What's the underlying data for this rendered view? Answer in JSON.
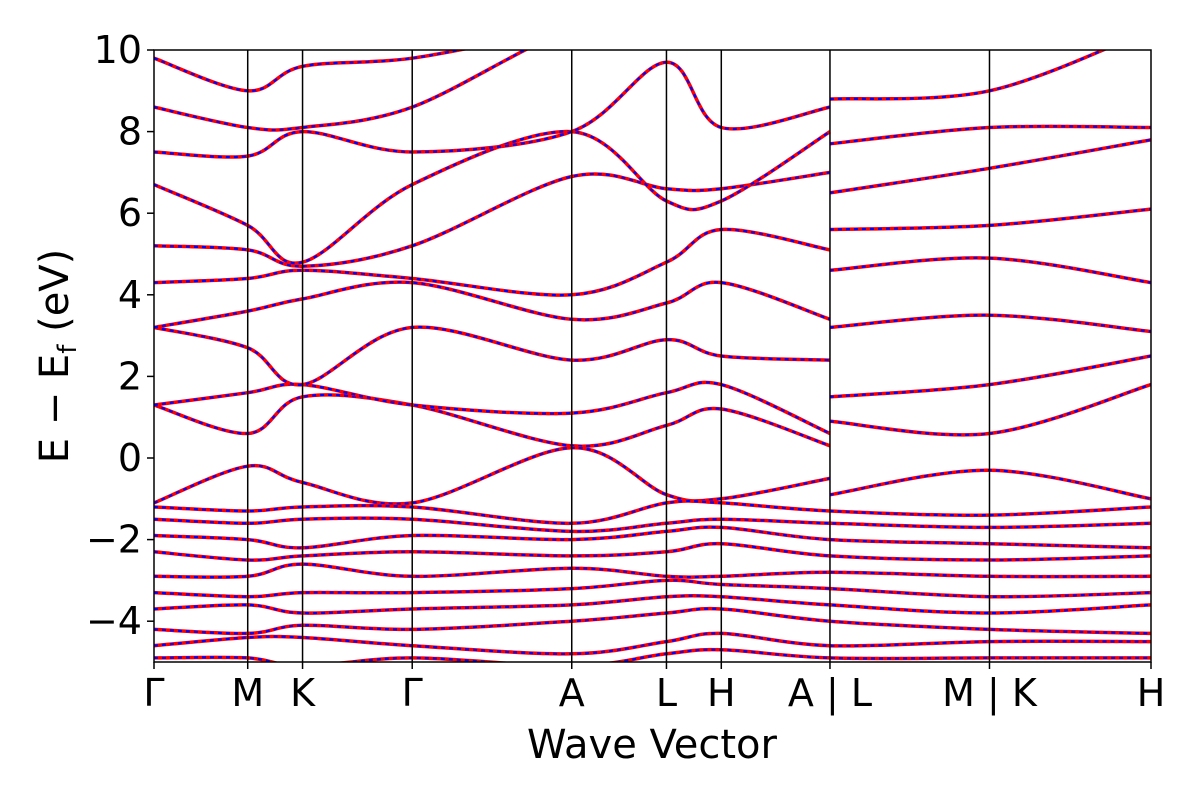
{
  "chart_data": {
    "type": "line",
    "xlabel": "Wave Vector",
    "ylabel_main": "E − E",
    "ylabel_sub": "f",
    "ylabel_unit": " (eV)",
    "ylim": [
      -5,
      10
    ],
    "yticks": [
      -4,
      -2,
      0,
      2,
      4,
      6,
      8,
      10
    ],
    "ytick_labels": [
      "−4",
      "−2",
      "0",
      "2",
      "4",
      "6",
      "8",
      "10"
    ],
    "kpath_labels": [
      "Γ",
      "M",
      "K",
      "Γ",
      "A",
      "L",
      "H",
      "A | L",
      "M | K",
      "H"
    ],
    "kpath_positions": [
      0,
      0.094,
      0.149,
      0.259,
      0.419,
      0.514,
      0.569,
      0.678,
      0.838,
      1.0
    ],
    "grid": false,
    "series": [
      {
        "color": "#ff0000",
        "style": "solid"
      },
      {
        "color": "#0000ff",
        "style": "dotted"
      }
    ],
    "bands": [
      {
        "x": [
          0,
          0.094,
          0.149,
          0.259,
          0.419,
          0.514,
          0.569,
          0.678
        ],
        "y": [
          1.3,
          0.6,
          1.5,
          1.3,
          0.3,
          0.8,
          1.2,
          0.3
        ]
      },
      {
        "x": [
          0,
          0.094,
          0.149,
          0.259,
          0.419,
          0.514,
          0.569,
          0.678
        ],
        "y": [
          -1.1,
          -0.2,
          -0.6,
          -1.1,
          0.25,
          -0.9,
          -1.0,
          -0.5
        ]
      },
      {
        "x": [
          0,
          0.094,
          0.149,
          0.259,
          0.419,
          0.514,
          0.569,
          0.678
        ],
        "y": [
          1.3,
          1.6,
          1.8,
          1.3,
          1.1,
          1.6,
          1.8,
          0.6
        ]
      },
      {
        "x": [
          0,
          0.094,
          0.149,
          0.259,
          0.419,
          0.514,
          0.569,
          0.678
        ],
        "y": [
          3.2,
          2.7,
          1.8,
          3.2,
          2.4,
          2.9,
          2.5,
          2.4
        ]
      },
      {
        "x": [
          0,
          0.094,
          0.149,
          0.259,
          0.419,
          0.514,
          0.569,
          0.678
        ],
        "y": [
          3.2,
          3.6,
          3.9,
          4.3,
          3.4,
          3.8,
          4.3,
          3.4
        ]
      },
      {
        "x": [
          0,
          0.094,
          0.149,
          0.259,
          0.419,
          0.514,
          0.569,
          0.678
        ],
        "y": [
          4.3,
          4.4,
          4.6,
          4.4,
          4.0,
          4.8,
          5.6,
          5.1
        ]
      },
      {
        "x": [
          0,
          0.094,
          0.149,
          0.259,
          0.419,
          0.514,
          0.569,
          0.678
        ],
        "y": [
          5.2,
          5.1,
          4.7,
          5.2,
          6.9,
          6.6,
          6.6,
          7.0
        ]
      },
      {
        "x": [
          0,
          0.094,
          0.149,
          0.259,
          0.419,
          0.514,
          0.569,
          0.678
        ],
        "y": [
          6.7,
          5.7,
          4.8,
          6.7,
          8.0,
          6.3,
          6.3,
          8.0
        ]
      },
      {
        "x": [
          0,
          0.094,
          0.149,
          0.259,
          0.419,
          0.514,
          0.569,
          0.678
        ],
        "y": [
          7.5,
          7.4,
          8.0,
          7.5,
          8.0,
          9.7,
          8.1,
          8.6
        ]
      },
      {
        "x": [
          0,
          0.094,
          0.149,
          0.259,
          0.419,
          0.514,
          0.569,
          0.678
        ],
        "y": [
          8.6,
          8.1,
          8.1,
          8.6,
          10.5,
          10.5,
          10.5,
          10.5
        ]
      },
      {
        "x": [
          0,
          0.094,
          0.149,
          0.259,
          0.419,
          0.514,
          0.569,
          0.678
        ],
        "y": [
          9.8,
          9.0,
          9.6,
          9.8,
          10.5,
          10.5,
          10.5,
          10.5
        ]
      },
      {
        "x": [
          0.678,
          0.838,
          1.0
        ],
        "y": [
          0.9,
          0.6,
          1.8
        ]
      },
      {
        "x": [
          0.678,
          0.838,
          1.0
        ],
        "y": [
          -0.9,
          -0.3,
          -1.0
        ]
      },
      {
        "x": [
          0.678,
          0.838,
          1.0
        ],
        "y": [
          1.5,
          1.8,
          2.5
        ]
      },
      {
        "x": [
          0.678,
          0.838,
          1.0
        ],
        "y": [
          3.2,
          3.5,
          3.1
        ]
      },
      {
        "x": [
          0.678,
          0.838,
          1.0
        ],
        "y": [
          4.6,
          4.9,
          4.3
        ]
      },
      {
        "x": [
          0.678,
          0.838,
          1.0
        ],
        "y": [
          5.6,
          5.7,
          6.1
        ]
      },
      {
        "x": [
          0.678,
          0.838,
          1.0
        ],
        "y": [
          6.5,
          7.1,
          7.8
        ]
      },
      {
        "x": [
          0.678,
          0.838,
          1.0
        ],
        "y": [
          7.7,
          8.1,
          8.1
        ]
      },
      {
        "x": [
          0.678,
          0.838,
          1.0
        ],
        "y": [
          8.8,
          9.0,
          10.5
        ]
      },
      {
        "x": [
          0,
          0.094,
          0.149,
          0.259,
          0.419,
          0.514,
          0.569,
          0.678,
          0.838,
          1.0
        ],
        "y": [
          -1.2,
          -1.3,
          -1.2,
          -1.2,
          -1.6,
          -1.1,
          -1.1,
          -1.3,
          -1.4,
          -1.2
        ]
      },
      {
        "x": [
          0,
          0.094,
          0.149,
          0.259,
          0.419,
          0.514,
          0.569,
          0.678,
          0.838,
          1.0
        ],
        "y": [
          -1.5,
          -1.6,
          -1.5,
          -1.5,
          -1.8,
          -1.6,
          -1.5,
          -1.6,
          -1.7,
          -1.6
        ]
      },
      {
        "x": [
          0,
          0.094,
          0.149,
          0.259,
          0.419,
          0.514,
          0.569,
          0.678,
          0.838,
          1.0
        ],
        "y": [
          -1.9,
          -2.0,
          -2.2,
          -1.9,
          -2.0,
          -1.8,
          -1.7,
          -2.0,
          -2.1,
          -2.2
        ]
      },
      {
        "x": [
          0,
          0.094,
          0.149,
          0.259,
          0.419,
          0.514,
          0.569,
          0.678,
          0.838,
          1.0
        ],
        "y": [
          -2.3,
          -2.5,
          -2.4,
          -2.3,
          -2.4,
          -2.3,
          -2.1,
          -2.4,
          -2.5,
          -2.4
        ]
      },
      {
        "x": [
          0,
          0.094,
          0.149,
          0.259,
          0.419,
          0.514,
          0.569,
          0.678,
          0.838,
          1.0
        ],
        "y": [
          -2.9,
          -2.9,
          -2.6,
          -2.9,
          -2.7,
          -2.9,
          -2.9,
          -2.8,
          -2.9,
          -2.9
        ]
      },
      {
        "x": [
          0,
          0.094,
          0.149,
          0.259,
          0.419,
          0.514,
          0.569,
          0.678,
          0.838,
          1.0
        ],
        "y": [
          -3.3,
          -3.4,
          -3.3,
          -3.3,
          -3.2,
          -3.0,
          -3.1,
          -3.2,
          -3.4,
          -3.3
        ]
      },
      {
        "x": [
          0,
          0.094,
          0.149,
          0.259,
          0.419,
          0.514,
          0.569,
          0.678,
          0.838,
          1.0
        ],
        "y": [
          -3.7,
          -3.6,
          -3.8,
          -3.7,
          -3.6,
          -3.4,
          -3.4,
          -3.6,
          -3.8,
          -3.6
        ]
      },
      {
        "x": [
          0,
          0.094,
          0.149,
          0.259,
          0.419,
          0.514,
          0.569,
          0.678,
          0.838,
          1.0
        ],
        "y": [
          -4.2,
          -4.3,
          -4.1,
          -4.2,
          -4.0,
          -3.8,
          -3.7,
          -4.0,
          -4.2,
          -4.3
        ]
      },
      {
        "x": [
          0,
          0.094,
          0.149,
          0.259,
          0.419,
          0.514,
          0.569,
          0.678,
          0.838,
          1.0
        ],
        "y": [
          -4.6,
          -4.4,
          -4.4,
          -4.6,
          -4.8,
          -4.5,
          -4.3,
          -4.6,
          -4.5,
          -4.5
        ]
      },
      {
        "x": [
          0,
          0.094,
          0.149,
          0.259,
          0.419,
          0.514,
          0.569,
          0.678,
          0.838,
          1.0
        ],
        "y": [
          -4.9,
          -4.9,
          -5.1,
          -4.9,
          -5.1,
          -4.8,
          -4.7,
          -4.9,
          -4.9,
          -4.9
        ]
      }
    ]
  }
}
